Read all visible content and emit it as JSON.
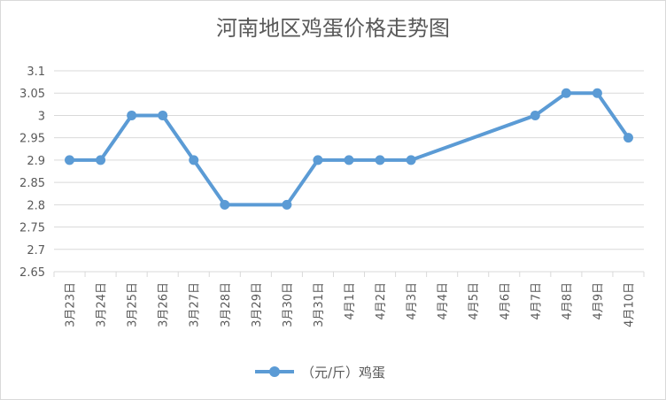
{
  "chart_data": {
    "type": "line",
    "title": "河南地区鸡蛋价格走势图",
    "categories": [
      "3月23日",
      "3月24日",
      "3月25日",
      "3月26日",
      "3月27日",
      "3月28日",
      "3月29日",
      "3月30日",
      "3月31日",
      "4月1日",
      "4月2日",
      "4月3日",
      "4月4日",
      "4月5日",
      "4月6日",
      "4月7日",
      "4月8日",
      "4月9日",
      "4月10日"
    ],
    "series": [
      {
        "name": "（元/斤）鸡蛋",
        "values": [
          2.9,
          2.9,
          3.0,
          3.0,
          2.9,
          2.8,
          null,
          2.8,
          2.9,
          2.9,
          2.9,
          2.9,
          null,
          null,
          null,
          3.0,
          3.05,
          3.05,
          2.95
        ],
        "color": "#5b9bd5"
      }
    ],
    "ylim": [
      2.65,
      3.1
    ],
    "yticks": [
      "3.1",
      "3.05",
      "3",
      "2.95",
      "2.9",
      "2.85",
      "2.8",
      "2.75",
      "2.7",
      "2.65"
    ],
    "grid": true,
    "legend_position": "bottom",
    "gap_handling": "connect"
  }
}
